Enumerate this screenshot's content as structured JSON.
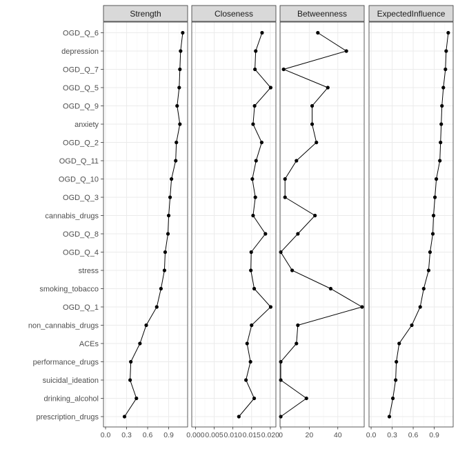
{
  "chart_data": {
    "type": "line",
    "categories": [
      "OGD_Q_6",
      "depression",
      "OGD_Q_7",
      "OGD_Q_5",
      "OGD_Q_9",
      "anxiety",
      "OGD_Q_2",
      "OGD_Q_11",
      "OGD_Q_10",
      "OGD_Q_3",
      "cannabis_drugs",
      "OGD_Q_8",
      "OGD_Q_4",
      "stress",
      "smoking_tobacco",
      "OGD_Q_1",
      "non_cannabis_drugs",
      "ACEs",
      "performance_drugs",
      "suicidal_ideation",
      "drinking_alcohol",
      "prescription_drugs"
    ],
    "panels": [
      {
        "name": "Strength",
        "xlim": [
          -0.03,
          1.17
        ],
        "ticks": [
          0.0,
          0.3,
          0.6,
          0.9
        ],
        "tick_labels": [
          "0.0",
          "0.3",
          "0.6",
          "0.9"
        ],
        "values": [
          1.1,
          1.07,
          1.06,
          1.05,
          1.02,
          1.06,
          1.01,
          1.0,
          0.94,
          0.92,
          0.9,
          0.89,
          0.85,
          0.84,
          0.79,
          0.73,
          0.58,
          0.49,
          0.36,
          0.35,
          0.44,
          0.27
        ]
      },
      {
        "name": "Closeness",
        "xlim": [
          -0.001,
          0.0215
        ],
        "ticks": [
          0.0,
          0.005,
          0.01,
          0.015,
          0.02
        ],
        "tick_labels": [
          "0.000",
          "0.005",
          "0.010",
          "0.015",
          "0.020"
        ],
        "values": [
          0.0178,
          0.0161,
          0.0159,
          0.0201,
          0.0158,
          0.0154,
          0.0177,
          0.0162,
          0.0152,
          0.016,
          0.0154,
          0.0187,
          0.0149,
          0.0148,
          0.0157,
          0.0201,
          0.015,
          0.0138,
          0.0147,
          0.0135,
          0.0157,
          0.0116
        ]
      },
      {
        "name": "Betweenness",
        "xlim": [
          -0.5,
          58.5
        ],
        "ticks": [
          0,
          20,
          40
        ],
        "tick_labels": [
          "0",
          "20",
          "40"
        ],
        "values": [
          26,
          46,
          2,
          33,
          22,
          22,
          25,
          11,
          3,
          3,
          24,
          12,
          0,
          8,
          35,
          57,
          12,
          11,
          0,
          0,
          18,
          0
        ]
      },
      {
        "name": "ExpectedInfluence",
        "xlim": [
          -0.03,
          1.17
        ],
        "ticks": [
          0.0,
          0.3,
          0.6,
          0.9
        ],
        "tick_labels": [
          "0.0",
          "0.3",
          "0.6",
          "0.9"
        ],
        "values": [
          1.1,
          1.07,
          1.06,
          1.03,
          1.01,
          1.0,
          0.99,
          0.98,
          0.93,
          0.91,
          0.89,
          0.88,
          0.84,
          0.82,
          0.75,
          0.7,
          0.58,
          0.4,
          0.36,
          0.35,
          0.31,
          0.26
        ]
      }
    ]
  }
}
